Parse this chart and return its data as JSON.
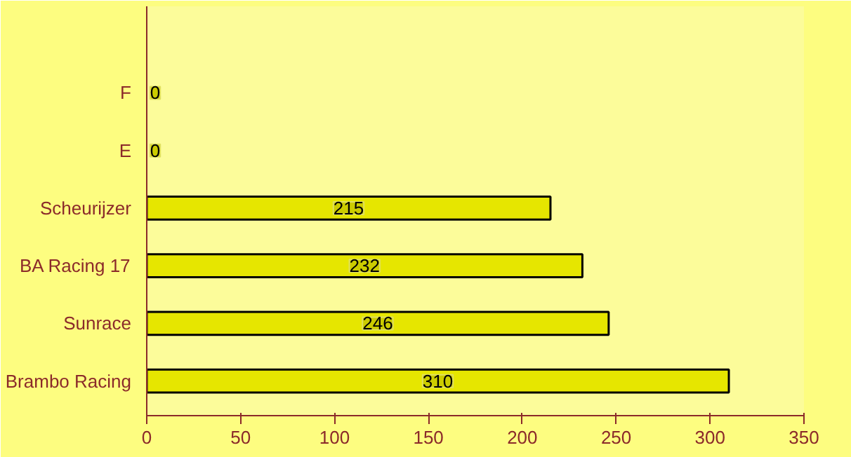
{
  "chart_data": {
    "type": "bar",
    "orientation": "horizontal",
    "categories": [
      "F",
      "E",
      "Scheurijzer",
      "BA Racing 17",
      "Sunrace",
      "Brambo Racing"
    ],
    "values": [
      0,
      0,
      215,
      232,
      246,
      310
    ],
    "color": "#e6e600",
    "xlim": [
      0,
      350
    ],
    "xticks": [
      0,
      50,
      100,
      150,
      200,
      250,
      300,
      350
    ],
    "data_labels": true,
    "grid": false
  }
}
